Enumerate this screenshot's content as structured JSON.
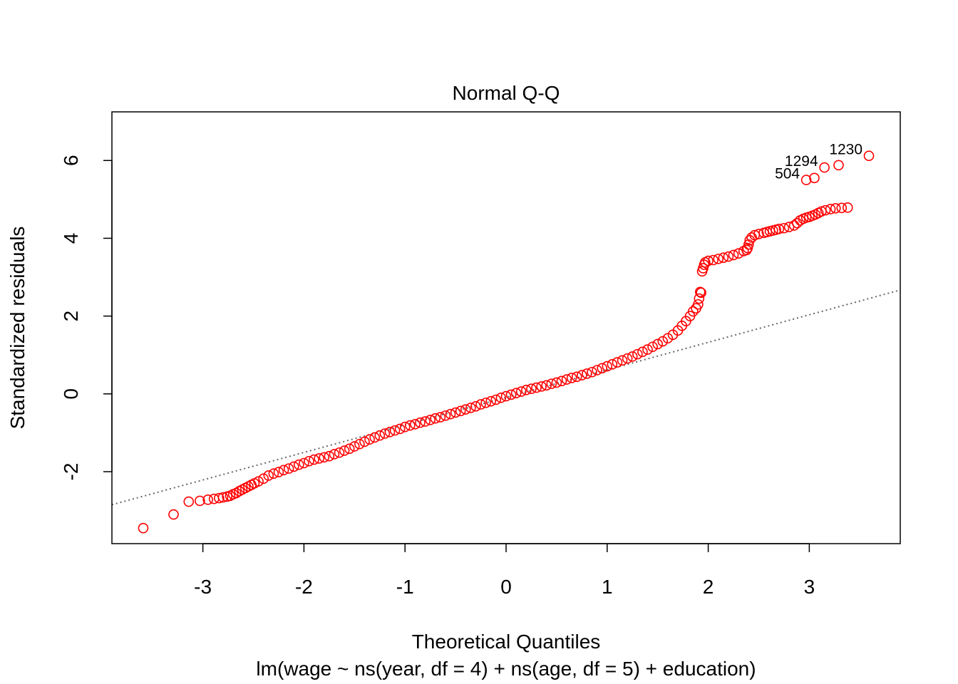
{
  "chart_data": {
    "type": "scatter",
    "title": "Normal Q-Q",
    "xlabel": "Theoretical Quantiles",
    "subtitle": "lm(wage ~ ns(year, df = 4) + ns(age, df = 5) + education)",
    "ylabel": "Standardized residuals",
    "xlim": [
      -3.9,
      3.9
    ],
    "ylim": [
      -3.85,
      7.25
    ],
    "x_ticks": [
      -3,
      -2,
      -1,
      0,
      1,
      2,
      3
    ],
    "y_ticks": [
      -2,
      0,
      2,
      4,
      6
    ],
    "x_tick_labels": [
      "-3",
      "-2",
      "-1",
      "0",
      "1",
      "2",
      "3"
    ],
    "y_tick_labels": [
      "-2",
      "0",
      "2",
      "4",
      "6"
    ],
    "grid": false,
    "point_color": "#ff0000",
    "reference_line": {
      "style": "dotted",
      "color": "#666666",
      "x": [
        -3.9,
        3.9
      ],
      "y": [
        -2.85,
        2.67
      ]
    },
    "series": [
      {
        "points": [
          [
            -3.59,
            -3.45
          ],
          [
            -3.29,
            -3.1
          ],
          [
            -3.14,
            -2.77
          ],
          [
            -3.03,
            -2.75
          ],
          [
            -2.95,
            -2.72
          ],
          [
            -2.89,
            -2.7
          ],
          [
            -2.84,
            -2.68
          ],
          [
            -2.8,
            -2.66
          ],
          [
            -2.76,
            -2.64
          ],
          [
            -2.73,
            -2.62
          ],
          [
            -2.7,
            -2.58
          ],
          [
            -2.67,
            -2.55
          ],
          [
            -2.64,
            -2.5
          ],
          [
            -2.61,
            -2.46
          ],
          [
            -2.58,
            -2.42
          ],
          [
            -2.55,
            -2.38
          ],
          [
            -2.52,
            -2.34
          ],
          [
            -2.49,
            -2.3
          ],
          [
            -2.45,
            -2.25
          ],
          [
            -2.4,
            -2.18
          ],
          [
            -2.35,
            -2.1
          ],
          [
            -2.3,
            -2.05
          ],
          [
            -2.25,
            -2.01
          ],
          [
            -2.2,
            -1.96
          ],
          [
            -2.15,
            -1.92
          ],
          [
            -2.1,
            -1.87
          ],
          [
            -2.05,
            -1.82
          ],
          [
            -2.0,
            -1.78
          ],
          [
            -1.95,
            -1.73
          ],
          [
            -1.9,
            -1.69
          ],
          [
            -1.85,
            -1.66
          ],
          [
            -1.8,
            -1.63
          ],
          [
            -1.75,
            -1.6
          ],
          [
            -1.7,
            -1.55
          ],
          [
            -1.65,
            -1.51
          ],
          [
            -1.6,
            -1.46
          ],
          [
            -1.55,
            -1.41
          ],
          [
            -1.5,
            -1.35
          ],
          [
            -1.45,
            -1.29
          ],
          [
            -1.4,
            -1.23
          ],
          [
            -1.35,
            -1.17
          ],
          [
            -1.3,
            -1.12
          ],
          [
            -1.25,
            -1.07
          ],
          [
            -1.2,
            -1.02
          ],
          [
            -1.15,
            -0.98
          ],
          [
            -1.1,
            -0.94
          ],
          [
            -1.05,
            -0.9
          ],
          [
            -1.0,
            -0.85
          ],
          [
            -0.95,
            -0.81
          ],
          [
            -0.9,
            -0.78
          ],
          [
            -0.85,
            -0.74
          ],
          [
            -0.8,
            -0.71
          ],
          [
            -0.75,
            -0.67
          ],
          [
            -0.7,
            -0.63
          ],
          [
            -0.65,
            -0.6
          ],
          [
            -0.6,
            -0.56
          ],
          [
            -0.55,
            -0.52
          ],
          [
            -0.5,
            -0.48
          ],
          [
            -0.45,
            -0.44
          ],
          [
            -0.4,
            -0.4
          ],
          [
            -0.35,
            -0.36
          ],
          [
            -0.3,
            -0.32
          ],
          [
            -0.25,
            -0.27
          ],
          [
            -0.2,
            -0.23
          ],
          [
            -0.15,
            -0.19
          ],
          [
            -0.1,
            -0.15
          ],
          [
            -0.05,
            -0.1
          ],
          [
            0.0,
            -0.06
          ],
          [
            0.05,
            -0.02
          ],
          [
            0.1,
            0.02
          ],
          [
            0.15,
            0.06
          ],
          [
            0.2,
            0.1
          ],
          [
            0.25,
            0.13
          ],
          [
            0.3,
            0.16
          ],
          [
            0.35,
            0.19
          ],
          [
            0.4,
            0.22
          ],
          [
            0.45,
            0.26
          ],
          [
            0.5,
            0.29
          ],
          [
            0.55,
            0.33
          ],
          [
            0.6,
            0.37
          ],
          [
            0.65,
            0.41
          ],
          [
            0.7,
            0.44
          ],
          [
            0.75,
            0.48
          ],
          [
            0.8,
            0.52
          ],
          [
            0.85,
            0.56
          ],
          [
            0.9,
            0.61
          ],
          [
            0.95,
            0.66
          ],
          [
            1.0,
            0.71
          ],
          [
            1.05,
            0.76
          ],
          [
            1.1,
            0.81
          ],
          [
            1.15,
            0.86
          ],
          [
            1.2,
            0.91
          ],
          [
            1.25,
            0.96
          ],
          [
            1.3,
            1.02
          ],
          [
            1.35,
            1.08
          ],
          [
            1.4,
            1.14
          ],
          [
            1.45,
            1.21
          ],
          [
            1.5,
            1.28
          ],
          [
            1.55,
            1.35
          ],
          [
            1.6,
            1.43
          ],
          [
            1.65,
            1.52
          ],
          [
            1.7,
            1.63
          ],
          [
            1.74,
            1.75
          ],
          [
            1.78,
            1.87
          ],
          [
            1.82,
            2.0
          ],
          [
            1.85,
            2.12
          ],
          [
            1.88,
            2.2
          ],
          [
            1.9,
            2.3
          ],
          [
            1.91,
            2.45
          ],
          [
            1.92,
            2.62
          ],
          [
            1.93,
            2.6
          ],
          [
            1.94,
            3.15
          ],
          [
            1.95,
            3.23
          ],
          [
            1.96,
            3.32
          ],
          [
            1.97,
            3.38
          ],
          [
            2.0,
            3.42
          ],
          [
            2.05,
            3.44
          ],
          [
            2.1,
            3.47
          ],
          [
            2.15,
            3.5
          ],
          [
            2.2,
            3.53
          ],
          [
            2.25,
            3.57
          ],
          [
            2.3,
            3.61
          ],
          [
            2.35,
            3.67
          ],
          [
            2.38,
            3.7
          ],
          [
            2.39,
            3.75
          ],
          [
            2.4,
            3.84
          ],
          [
            2.41,
            3.95
          ],
          [
            2.43,
            4.02
          ],
          [
            2.46,
            4.08
          ],
          [
            2.5,
            4.11
          ],
          [
            2.55,
            4.14
          ],
          [
            2.58,
            4.16
          ],
          [
            2.61,
            4.18
          ],
          [
            2.64,
            4.2
          ],
          [
            2.67,
            4.22
          ],
          [
            2.7,
            4.24
          ],
          [
            2.75,
            4.26
          ],
          [
            2.8,
            4.29
          ],
          [
            2.85,
            4.33
          ],
          [
            2.88,
            4.39
          ],
          [
            2.91,
            4.46
          ],
          [
            2.94,
            4.5
          ],
          [
            2.97,
            4.53
          ],
          [
            3.0,
            4.55
          ],
          [
            3.03,
            4.58
          ],
          [
            3.06,
            4.61
          ],
          [
            3.09,
            4.65
          ],
          [
            3.12,
            4.69
          ],
          [
            3.16,
            4.72
          ],
          [
            3.21,
            4.75
          ],
          [
            3.26,
            4.77
          ],
          [
            3.32,
            4.78
          ],
          [
            3.38,
            4.79
          ],
          [
            2.97,
            5.5
          ],
          [
            3.05,
            5.55
          ],
          [
            3.15,
            5.82
          ],
          [
            3.29,
            5.88
          ],
          [
            3.59,
            6.12
          ]
        ]
      }
    ],
    "annotations": [
      {
        "text": "504",
        "x": 2.97,
        "y": 5.5
      },
      {
        "text": "1294",
        "x": 3.15,
        "y": 5.82
      },
      {
        "text": "1230",
        "x": 3.59,
        "y": 6.12
      }
    ]
  }
}
